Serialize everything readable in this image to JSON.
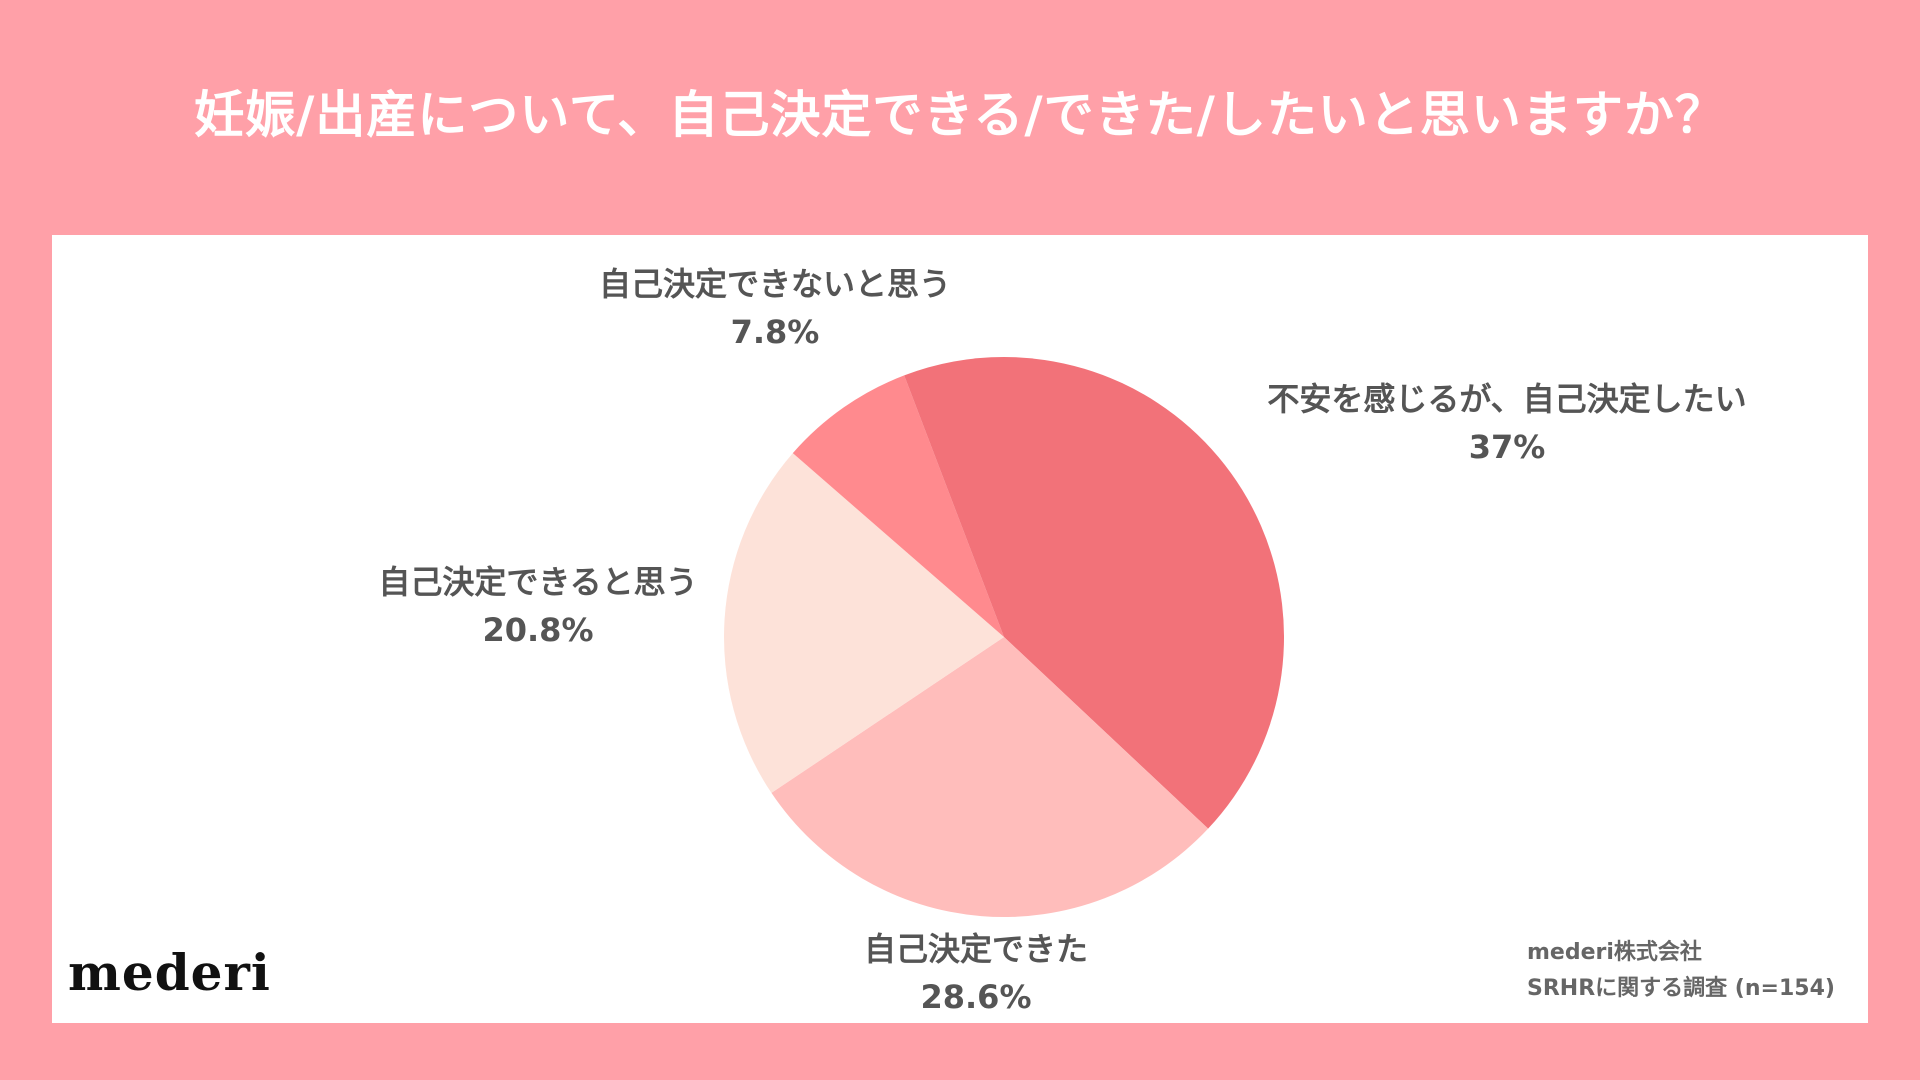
{
  "title": "妊娠/出産について、自己決定できる/できた/したいと思いますか？",
  "logo": "mederi",
  "source": {
    "line1": "mederi株式会社",
    "line2": "SRHRに関する調査 (n=154)"
  },
  "colors": {
    "background": "#ffa0a8",
    "panel": "#ffffff",
    "label_text": "#555555"
  },
  "chart_data": {
    "type": "pie",
    "start": "12 o'clock",
    "direction": "clockwise",
    "slices": [
      {
        "label": "不安を感じるが、自己決定したい",
        "value": 37,
        "value_label": "37%",
        "color": "#f27279"
      },
      {
        "label": "自己決定できた",
        "value": 28.6,
        "value_label": "28.6%",
        "color": "#ffbdbb"
      },
      {
        "label": "自己決定できると思う",
        "value": 20.8,
        "value_label": "20.8%",
        "color": "#fde2d9"
      },
      {
        "label": "自己決定できないと思う",
        "value": 7.8,
        "value_label": "7.8%",
        "color": "#ff8a8e"
      },
      {
        "label": "",
        "value": 5.8,
        "value_label": "",
        "color": "#f27279"
      }
    ]
  }
}
